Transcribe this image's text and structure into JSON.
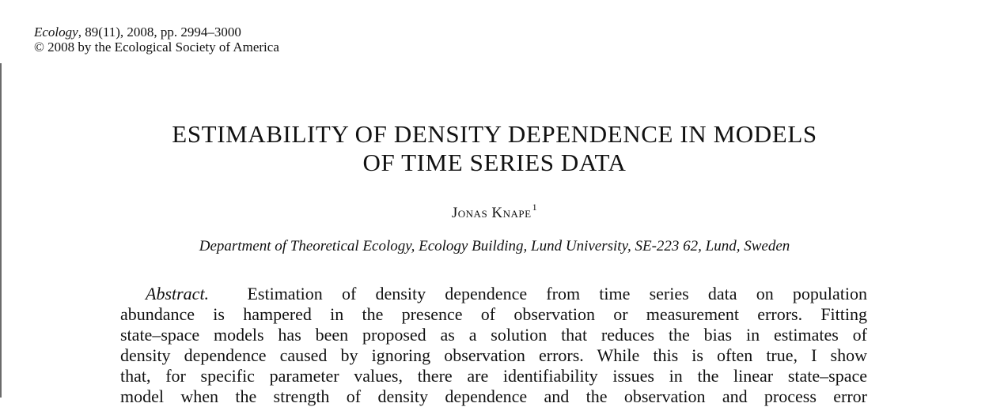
{
  "header": {
    "journal": "Ecology",
    "citation_rest": ", 89(11), 2008, pp. 2994–3000",
    "copyright": "© 2008 by the Ecological Society of America"
  },
  "title": {
    "lines": [
      "ESTIMABILITY OF DENSITY DEPENDENCE IN MODELS",
      "OF TIME SERIES DATA"
    ]
  },
  "author": {
    "name": "Jonas Knape",
    "affiliation_mark": "1"
  },
  "affiliation": "Department of Theoretical Ecology, Ecology Building, Lund University, SE-223 62, Lund, Sweden",
  "abstract": {
    "label": "Abstract.",
    "lines": [
      "Estimation of density dependence from time series data on population",
      "abundance is hampered in the presence of observation or measurement errors. Fitting",
      "state–space models has been proposed as a solution that reduces the bias in estimates of",
      "density dependence caused by ignoring observation errors. While this is often true, I show",
      "that, for specific parameter values, there are identifiability issues in the linear state–space",
      "model when the strength of density dependence and the observation and process error"
    ]
  }
}
